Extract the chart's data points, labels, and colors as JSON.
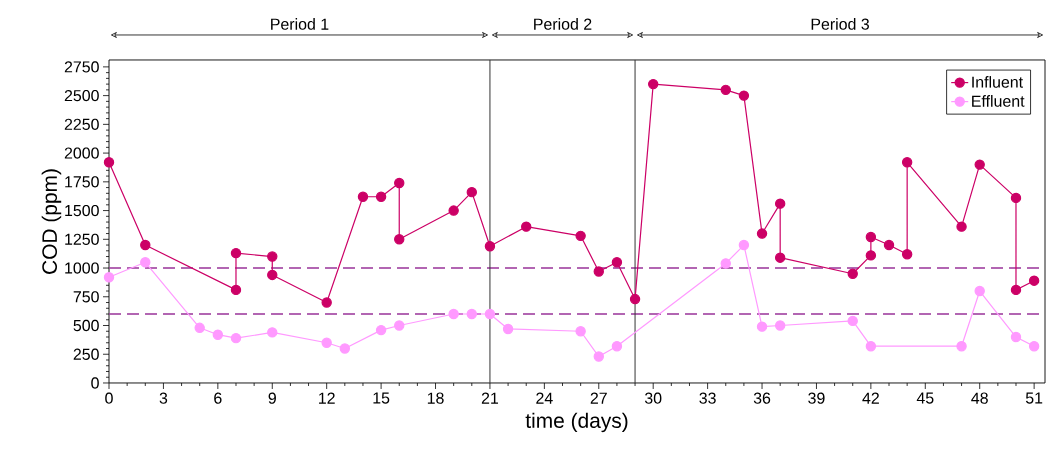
{
  "chart_data": {
    "type": "line",
    "xlabel": "time (days)",
    "ylabel": "COD (ppm)",
    "xlim": [
      0,
      51.6
    ],
    "ylim": [
      0,
      2810
    ],
    "xticks": [
      0,
      3,
      6,
      9,
      12,
      15,
      18,
      21,
      24,
      27,
      30,
      33,
      36,
      39,
      42,
      45,
      48,
      51
    ],
    "yticks": [
      0,
      250,
      500,
      750,
      1000,
      1250,
      1500,
      1750,
      2000,
      2250,
      2500,
      2750
    ],
    "grid": false,
    "legend": "top right",
    "marker": "circle",
    "line_style": "solid",
    "series": [
      {
        "name": "Influent",
        "color": "#cc0066",
        "x": [
          0,
          2,
          7,
          7,
          9,
          9,
          12,
          14,
          15,
          16,
          16,
          19,
          20,
          21,
          23,
          26,
          27,
          28,
          29,
          30,
          34,
          35,
          36,
          37,
          37,
          41,
          42,
          42,
          43,
          44,
          44,
          47,
          48,
          50,
          50,
          51
        ],
        "values": [
          1920,
          1200,
          810,
          1130,
          1100,
          940,
          700,
          1620,
          1620,
          1740,
          1250,
          1500,
          1660,
          1190,
          1360,
          1280,
          970,
          1050,
          730,
          2600,
          2550,
          2500,
          1300,
          1560,
          1090,
          950,
          1110,
          1270,
          1200,
          1120,
          1920,
          1360,
          1900,
          1610,
          810,
          890
        ]
      },
      {
        "name": "Effluent",
        "color": "#ff99ff",
        "x": [
          0,
          2,
          5,
          6,
          7,
          9,
          12,
          13,
          15,
          16,
          19,
          20,
          21,
          22,
          26,
          27,
          28,
          34,
          35,
          36,
          37,
          41,
          42,
          47,
          48,
          50,
          51
        ],
        "values": [
          920,
          1050,
          480,
          420,
          390,
          440,
          350,
          300,
          460,
          500,
          600,
          600,
          600,
          470,
          450,
          230,
          320,
          1040,
          1200,
          490,
          500,
          540,
          320,
          320,
          800,
          400,
          320
        ]
      }
    ],
    "ref_lines": [
      {
        "axis": "y",
        "value": 1000,
        "color": "#993399",
        "line_style": "dashed"
      },
      {
        "axis": "y",
        "value": 600,
        "color": "#993399",
        "line_style": "dashed"
      },
      {
        "axis": "x",
        "value": 21,
        "color": "#333333",
        "line_style": "solid"
      },
      {
        "axis": "x",
        "value": 29,
        "color": "#333333",
        "line_style": "solid"
      }
    ],
    "annotations": [
      "Period 1",
      "Period 2",
      "Period 3"
    ]
  }
}
